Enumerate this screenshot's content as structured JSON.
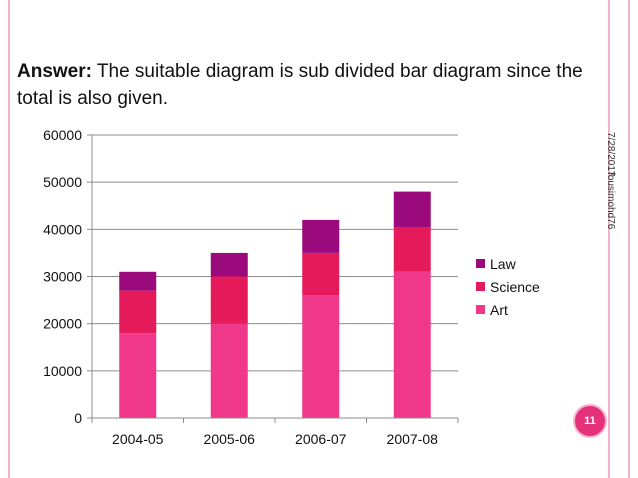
{
  "slide": {
    "answer_bold": "Answer:",
    "answer_text": " The suitable diagram is sub divided bar diagram since the total is also given.",
    "date": "7/28/2017",
    "author": "fousimohd76",
    "page_number": "11"
  },
  "colors": {
    "art": "#f0388a",
    "science": "#e51a5a",
    "law": "#9b0a7c",
    "border": "#f0b4cf"
  },
  "chart_data": {
    "type": "bar",
    "stacked": true,
    "categories": [
      "2004-05",
      "2005-06",
      "2006-07",
      "2007-08"
    ],
    "series": [
      {
        "name": "Art",
        "values": [
          18000,
          20000,
          26000,
          31000
        ]
      },
      {
        "name": "Science",
        "values": [
          9000,
          10000,
          9000,
          9500
        ]
      },
      {
        "name": "Law",
        "values": [
          4000,
          5000,
          7000,
          7500
        ]
      }
    ],
    "legend": [
      "Law",
      "Science",
      "Art"
    ],
    "legend_position": "right",
    "ylim": [
      0,
      60000
    ],
    "yticks": [
      0,
      10000,
      20000,
      30000,
      40000,
      50000,
      60000
    ],
    "grid": true,
    "title": "",
    "xlabel": "",
    "ylabel": ""
  }
}
